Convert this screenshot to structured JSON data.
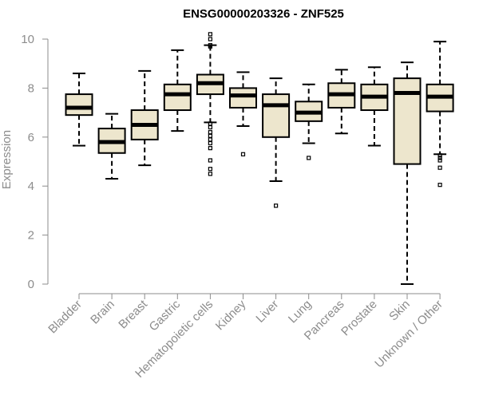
{
  "chart_data": {
    "type": "box",
    "title": "ENSG00000203326 - ZNF525",
    "ylabel": "Expression",
    "xlabel": "",
    "ylim": [
      0,
      10
    ],
    "yticks": [
      0,
      2,
      4,
      6,
      8,
      10
    ],
    "colors": {
      "box_fill": "#ede6cd",
      "box_stroke": "#000000",
      "axis": "#8c8c8c"
    },
    "categories": [
      "Bladder",
      "Brain",
      "Breast",
      "Gastric",
      "Hematopoietic cells",
      "Kidney",
      "Liver",
      "Lung",
      "Pancreas",
      "Prostate",
      "Skin",
      "Unknown / Other"
    ],
    "boxes": [
      {
        "min": 5.65,
        "q1": 6.9,
        "median": 7.2,
        "q3": 7.75,
        "max": 8.6,
        "outliers": []
      },
      {
        "min": 4.3,
        "q1": 5.35,
        "median": 5.8,
        "q3": 6.35,
        "max": 6.95,
        "outliers": []
      },
      {
        "min": 4.85,
        "q1": 5.9,
        "median": 6.5,
        "q3": 7.1,
        "max": 8.7,
        "outliers": []
      },
      {
        "min": 6.25,
        "q1": 7.1,
        "median": 7.75,
        "q3": 8.15,
        "max": 9.55,
        "outliers": []
      },
      {
        "min": 6.6,
        "q1": 7.75,
        "median": 8.2,
        "q3": 8.55,
        "max": 9.75,
        "outliers": [
          10.2,
          10.0,
          9.75,
          9.7,
          6.55,
          6.4,
          6.2,
          6.05,
          5.9,
          5.75,
          5.55,
          5.05,
          4.7,
          4.5
        ]
      },
      {
        "min": 6.45,
        "q1": 7.2,
        "median": 7.7,
        "q3": 8.0,
        "max": 8.65,
        "outliers": [
          5.3
        ]
      },
      {
        "min": 4.2,
        "q1": 6.0,
        "median": 7.3,
        "q3": 7.75,
        "max": 8.4,
        "outliers": [
          3.2
        ]
      },
      {
        "min": 5.75,
        "q1": 6.65,
        "median": 7.0,
        "q3": 7.45,
        "max": 8.15,
        "outliers": [
          5.15
        ]
      },
      {
        "min": 6.15,
        "q1": 7.2,
        "median": 7.75,
        "q3": 8.2,
        "max": 8.75,
        "outliers": []
      },
      {
        "min": 5.65,
        "q1": 7.1,
        "median": 7.65,
        "q3": 8.15,
        "max": 8.85,
        "outliers": []
      },
      {
        "min": 0.0,
        "q1": 4.9,
        "median": 7.8,
        "q3": 8.4,
        "max": 9.05,
        "outliers": []
      },
      {
        "min": 5.3,
        "q1": 7.05,
        "median": 7.65,
        "q3": 8.15,
        "max": 9.9,
        "outliers": [
          5.25,
          5.15,
          5.05,
          4.75,
          4.05
        ]
      }
    ]
  }
}
